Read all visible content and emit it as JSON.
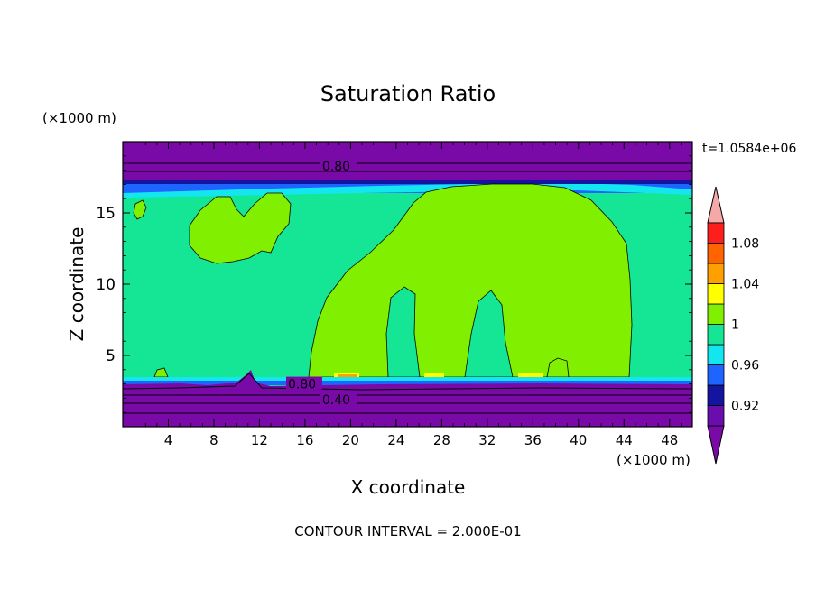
{
  "chart_data": {
    "type": "heatmap",
    "title": "Saturation Ratio",
    "xlabel": "X coordinate",
    "ylabel": "Z coordinate",
    "x_unit": "(×1000 m)",
    "y_unit": "(×1000 m)",
    "xlim": [
      0,
      50
    ],
    "ylim": [
      0,
      20
    ],
    "x_ticks": [
      4,
      8,
      12,
      16,
      20,
      24,
      28,
      32,
      36,
      40,
      44,
      48
    ],
    "y_ticks": [
      5,
      10,
      15
    ],
    "time_label": "t=1.0584e+06",
    "footer": "CONTOUR INTERVAL = 2.000E-01",
    "colorbar": {
      "levels": [
        0.9,
        0.92,
        0.94,
        0.96,
        0.98,
        1.0,
        1.02,
        1.04,
        1.06,
        1.08,
        1.1
      ],
      "labels": [
        "0.92",
        "0.96",
        "1",
        "1.04",
        "1.08"
      ],
      "label_values": [
        0.92,
        0.96,
        1.0,
        1.04,
        1.08
      ],
      "colors": [
        "#6a0dad",
        "#1414a0",
        "#1e64ff",
        "#14e6f0",
        "#14e696",
        "#80f000",
        "#ffff00",
        "#ffa000",
        "#ff6400",
        "#ff1e1e"
      ],
      "under_color": "#7a0aa8",
      "over_color": "#f4a8a8"
    },
    "contour_labels": [
      {
        "text": "0.80",
        "x": 17.5,
        "z": 18.3
      },
      {
        "text": "0.80",
        "x": 14.5,
        "z": 3.0
      },
      {
        "text": "0.40",
        "x": 17.5,
        "z": 1.9
      }
    ],
    "regions": {
      "background": "#14e696",
      "top_dry_layer": {
        "from_z": 16.2,
        "to_z": 20.0,
        "color": "#7a0aa8"
      },
      "bottom_dry_layer": {
        "from_z": 0.0,
        "to_z": 3.2,
        "color": "#7a0aa8"
      },
      "supersaturated_color": "#80f000",
      "peak_color": "#ffff00"
    }
  }
}
